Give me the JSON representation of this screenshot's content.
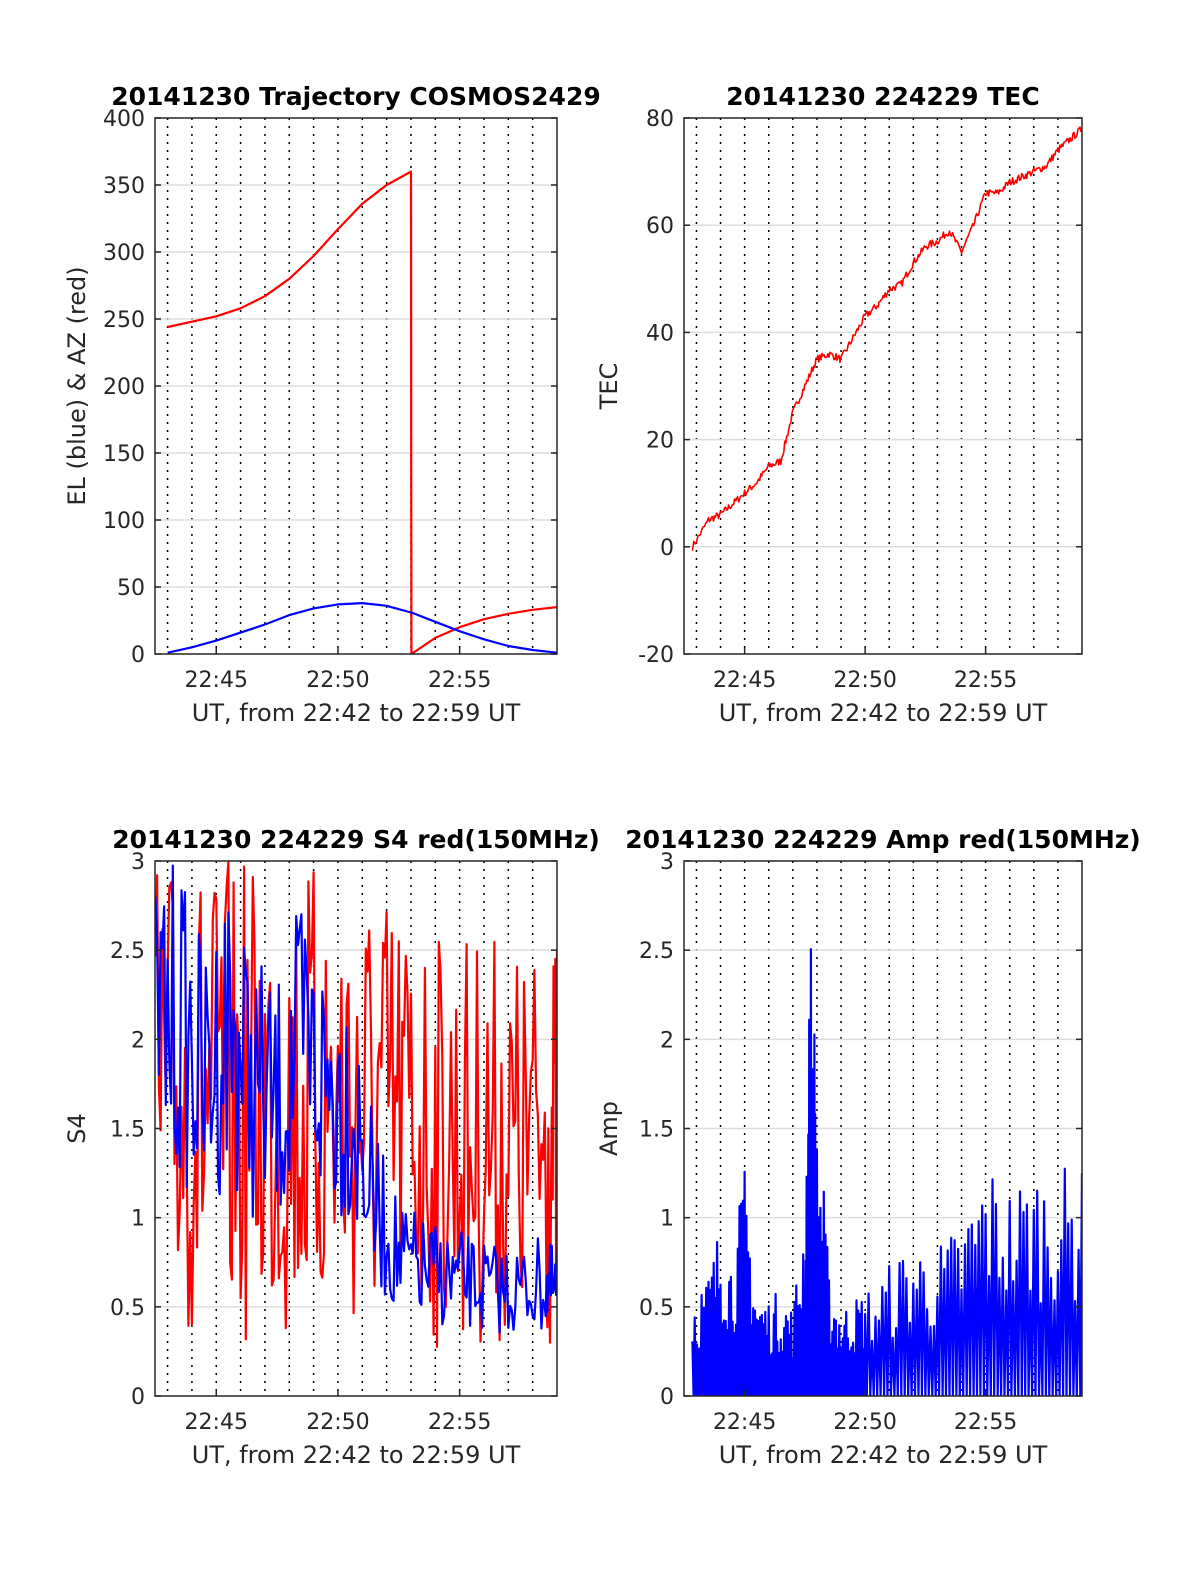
{
  "chart_data": [
    {
      "type": "line",
      "title": "20141230 Trajectory COSMOS2429",
      "xlabel": "UT, from 22:42 to 22:59 UT",
      "ylabel": "EL (blue) & AZ (red)",
      "xlim": [
        "22:42:29",
        "22:59:00"
      ],
      "ylim": [
        0,
        400
      ],
      "xticks": [
        "22:45",
        "22:50",
        "22:55"
      ],
      "yticks": [
        0,
        50,
        100,
        150,
        200,
        250,
        300,
        350,
        400
      ],
      "grid": true,
      "x": [
        "22:43:00",
        "22:44:00",
        "22:45:00",
        "22:46:00",
        "22:47:00",
        "22:48:00",
        "22:49:00",
        "22:50:00",
        "22:51:00",
        "22:52:00",
        "22:53:00",
        "22:53:01",
        "22:54:00",
        "22:55:00",
        "22:56:00",
        "22:57:00",
        "22:58:00",
        "22:59:00"
      ],
      "series": [
        {
          "color": "#ff0000",
          "values": [
            244,
            248,
            252,
            258,
            267,
            280,
            297,
            317,
            336,
            350,
            360,
            0,
            12,
            20,
            26,
            30,
            33,
            35
          ]
        },
        {
          "color": "#0000ff",
          "values": [
            1,
            5,
            10,
            16,
            22,
            29,
            34,
            37,
            38,
            36,
            31,
            31,
            24,
            17,
            11,
            6,
            3,
            1
          ]
        }
      ]
    },
    {
      "type": "line",
      "title": "20141230 224229 TEC",
      "xlabel": "UT, from 22:42 to 22:59 UT",
      "ylabel": "TEC",
      "xlim": [
        "22:42:29",
        "22:59:00"
      ],
      "ylim": [
        -20,
        80
      ],
      "xticks": [
        "22:45",
        "22:50",
        "22:55"
      ],
      "yticks": [
        -20,
        0,
        20,
        40,
        60,
        80
      ],
      "grid": true,
      "x": [
        "22:42:50",
        "22:43:30",
        "22:44:00",
        "22:44:30",
        "22:45:00",
        "22:45:30",
        "22:46:00",
        "22:46:30",
        "22:47:00",
        "22:47:30",
        "22:48:00",
        "22:48:30",
        "22:49:00",
        "22:49:30",
        "22:50:00",
        "22:50:30",
        "22:51:00",
        "22:51:30",
        "22:52:00",
        "22:52:30",
        "22:53:00",
        "22:53:30",
        "22:54:00",
        "22:54:30",
        "22:55:00",
        "22:55:30",
        "22:56:00",
        "22:56:30",
        "22:57:00",
        "22:57:30",
        "22:58:00",
        "22:58:30",
        "22:59:00"
      ],
      "series": [
        {
          "color": "#ff0000",
          "values": [
            0,
            5,
            6,
            8,
            10,
            12,
            15,
            16,
            25,
            30,
            35,
            36,
            35,
            39,
            43,
            45,
            48,
            49,
            53,
            56,
            57,
            59,
            55,
            60,
            66,
            66,
            68,
            69,
            70,
            71,
            74,
            76,
            78
          ]
        }
      ]
    },
    {
      "type": "line",
      "title": "20141230 224229 S4 red(150MHz)",
      "xlabel": "UT, from 22:42 to 22:59 UT",
      "ylabel": "S4",
      "xlim": [
        "22:42:29",
        "22:59:00"
      ],
      "ylim": [
        0,
        3
      ],
      "xticks": [
        "22:45",
        "22:50",
        "22:55"
      ],
      "yticks": [
        0,
        0.5,
        1,
        1.5,
        2,
        2.5,
        3
      ],
      "grid": true,
      "x": [
        "22:42:30",
        "22:43:30",
        "22:44:30",
        "22:45:30",
        "22:46:30",
        "22:47:30",
        "22:48:30",
        "22:49:30",
        "22:50:30",
        "22:51:30",
        "22:52:30",
        "22:53:30",
        "22:54:30",
        "22:55:30",
        "22:56:30",
        "22:57:30",
        "22:58:30",
        "22:59:00"
      ],
      "series": [
        {
          "color": "#ff0000",
          "values": [
            3,
            3,
            3,
            3,
            3,
            3,
            3,
            3,
            3,
            2.9,
            2.8,
            2.7,
            2.6,
            2.6,
            2.6,
            2.5,
            2.6,
            2.5
          ]
        },
        {
          "color": "#0000ff",
          "values": [
            3,
            3,
            2.5,
            3,
            2.5,
            2.3,
            2.8,
            2.5,
            2.4,
            1.5,
            1.1,
            1.0,
            0.95,
            0.9,
            0.85,
            0.85,
            0.9,
            0.8
          ]
        }
      ]
    },
    {
      "type": "line",
      "title": "20141230 224229 Amp red(150MHz)",
      "xlabel": "UT, from 22:42 to 22:59 UT",
      "ylabel": "Amp",
      "xlim": [
        "22:42:29",
        "22:59:00"
      ],
      "ylim": [
        0,
        3
      ],
      "xticks": [
        "22:45",
        "22:50",
        "22:55"
      ],
      "yticks": [
        0,
        0.5,
        1,
        1.5,
        2,
        2.5,
        3
      ],
      "grid": true,
      "x": [
        "22:42:50",
        "22:43:30",
        "22:44:00",
        "22:44:30",
        "22:45:00",
        "22:45:30",
        "22:46:00",
        "22:46:30",
        "22:47:00",
        "22:47:30",
        "22:47:45",
        "22:48:00",
        "22:48:30",
        "22:49:00",
        "22:49:30",
        "22:50:00",
        "22:51:00",
        "22:52:00",
        "22:53:00",
        "22:54:00",
        "22:55:00",
        "22:56:00",
        "22:57:00",
        "22:58:00",
        "22:59:00"
      ],
      "series": [
        {
          "color": "#0000ff",
          "values": [
            0.6,
            0.7,
            1.0,
            0.8,
            1.3,
            0.6,
            0.55,
            0.6,
            0.5,
            1.1,
            2.65,
            1.8,
            0.7,
            0.5,
            0.55,
            0.6,
            0.75,
            0.9,
            0.85,
            1.0,
            1.35,
            1.2,
            1.3,
            1.3,
            1.25
          ]
        }
      ]
    }
  ]
}
